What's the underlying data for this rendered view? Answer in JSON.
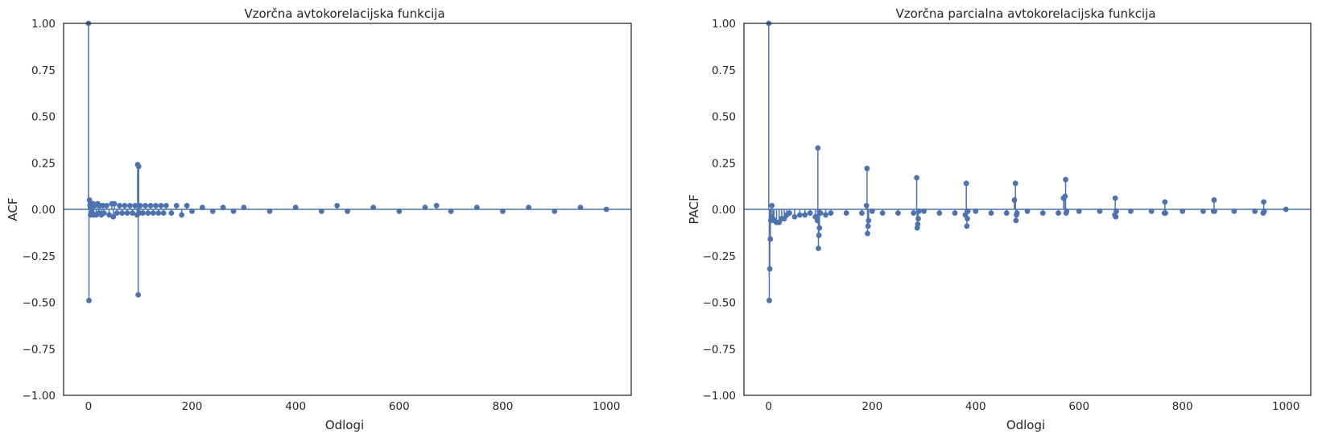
{
  "chart_data": [
    {
      "type": "scatter",
      "style": "stem",
      "title": "Vzorčna avtokorelacijska funkcija",
      "xlabel": "Odlogi",
      "ylabel": "ACF",
      "xlim": [
        -48,
        1048
      ],
      "ylim": [
        -1.0,
        1.0
      ],
      "xticks": [
        0,
        200,
        400,
        600,
        800,
        1000
      ],
      "xtick_labels": [
        "0",
        "200",
        "400",
        "600",
        "800",
        "1000"
      ],
      "yticks": [
        -1.0,
        -0.75,
        -0.5,
        -0.25,
        0.0,
        0.25,
        0.5,
        0.75,
        1.0
      ],
      "ytick_labels": [
        "−1.00",
        "−0.75",
        "−0.50",
        "−0.25",
        "0.00",
        "0.25",
        "0.50",
        "0.75",
        "1.00"
      ],
      "grid": false,
      "color": "#4c72b0",
      "series": [
        {
          "x": [
            0,
            1,
            2,
            3,
            4,
            5,
            6,
            7,
            8,
            9,
            10,
            12,
            15,
            18,
            20,
            22,
            25,
            28,
            30,
            35,
            40,
            45,
            48,
            50,
            55,
            60,
            65,
            70,
            75,
            80,
            85,
            90,
            94,
            95,
            96,
            97,
            98,
            100,
            105,
            110,
            115,
            120,
            125,
            130,
            135,
            140,
            145,
            150,
            160,
            170,
            180,
            190,
            200,
            220,
            240,
            260,
            280,
            300,
            350,
            400,
            450,
            480,
            500,
            550,
            600,
            650,
            672,
            700,
            750,
            800,
            850,
            900,
            950,
            1000
          ],
          "y": [
            1.0,
            -0.49,
            0.05,
            0.02,
            -0.03,
            0.03,
            -0.02,
            0.02,
            -0.02,
            0.03,
            -0.03,
            0.02,
            -0.03,
            0.03,
            -0.02,
            0.02,
            -0.03,
            0.02,
            -0.02,
            0.02,
            -0.03,
            0.03,
            -0.04,
            0.03,
            -0.02,
            0.02,
            -0.02,
            0.02,
            -0.02,
            0.02,
            -0.02,
            0.02,
            -0.03,
            0.24,
            -0.46,
            0.23,
            -0.02,
            0.02,
            -0.02,
            0.02,
            -0.02,
            0.02,
            -0.02,
            0.02,
            -0.02,
            0.02,
            -0.02,
            0.02,
            -0.02,
            0.02,
            -0.03,
            0.02,
            -0.01,
            0.01,
            -0.01,
            0.01,
            -0.01,
            0.01,
            -0.01,
            0.01,
            -0.01,
            0.02,
            -0.01,
            0.01,
            -0.01,
            0.01,
            0.02,
            -0.01,
            0.01,
            -0.01,
            0.01,
            -0.01,
            0.01,
            0.0
          ]
        }
      ]
    },
    {
      "type": "scatter",
      "style": "stem",
      "title": "Vzorčna parcialna avtokorelacijska funkcija",
      "xlabel": "Odlogi",
      "ylabel": "PACF",
      "xlim": [
        -48,
        1048
      ],
      "ylim": [
        -1.0,
        1.0
      ],
      "xticks": [
        0,
        200,
        400,
        600,
        800,
        1000
      ],
      "xtick_labels": [
        "0",
        "200",
        "400",
        "600",
        "800",
        "1000"
      ],
      "yticks": [
        -1.0,
        -0.75,
        -0.5,
        -0.25,
        0.0,
        0.25,
        0.5,
        0.75,
        1.0
      ],
      "ytick_labels": [
        "−1.00",
        "−0.75",
        "−0.50",
        "−0.25",
        "0.00",
        "0.25",
        "0.50",
        "0.75",
        "1.00"
      ],
      "grid": false,
      "color": "#4c72b0",
      "series": [
        {
          "x": [
            0,
            1,
            2,
            3,
            4,
            5,
            6,
            8,
            10,
            15,
            20,
            25,
            30,
            35,
            40,
            50,
            60,
            70,
            80,
            90,
            94,
            95,
            96,
            97,
            98,
            100,
            110,
            120,
            150,
            180,
            189,
            190,
            191,
            192,
            193,
            200,
            220,
            250,
            280,
            286,
            287,
            288,
            289,
            290,
            300,
            330,
            360,
            380,
            382,
            383,
            384,
            385,
            400,
            430,
            460,
            475,
            477,
            478,
            479,
            480,
            500,
            530,
            560,
            570,
            573,
            574,
            575,
            576,
            600,
            640,
            669,
            670,
            671,
            672,
            700,
            740,
            765,
            766,
            767,
            800,
            840,
            860,
            861,
            862,
            900,
            940,
            956,
            957,
            958,
            1000
          ],
          "y": [
            1.0,
            -0.49,
            -0.32,
            -0.16,
            -0.06,
            -0.04,
            0.02,
            -0.05,
            -0.06,
            -0.07,
            -0.07,
            -0.05,
            -0.05,
            -0.03,
            -0.02,
            -0.04,
            -0.03,
            -0.03,
            -0.02,
            -0.04,
            -0.06,
            0.33,
            -0.21,
            -0.14,
            -0.1,
            -0.02,
            -0.03,
            -0.02,
            -0.02,
            -0.02,
            0.02,
            0.22,
            -0.13,
            -0.09,
            -0.06,
            -0.01,
            -0.02,
            -0.02,
            -0.02,
            0.17,
            -0.1,
            -0.08,
            -0.05,
            -0.01,
            -0.01,
            -0.02,
            -0.02,
            -0.03,
            0.14,
            -0.09,
            -0.05,
            -0.01,
            -0.01,
            -0.02,
            -0.02,
            0.05,
            0.14,
            -0.06,
            -0.03,
            -0.02,
            -0.01,
            -0.02,
            -0.02,
            0.06,
            0.07,
            0.16,
            -0.02,
            -0.01,
            -0.01,
            -0.01,
            -0.03,
            0.06,
            -0.04,
            -0.01,
            -0.01,
            -0.01,
            -0.02,
            0.04,
            -0.02,
            -0.01,
            -0.01,
            -0.01,
            0.05,
            -0.01,
            -0.01,
            -0.01,
            -0.02,
            0.04,
            -0.01,
            0.0
          ]
        }
      ]
    }
  ]
}
